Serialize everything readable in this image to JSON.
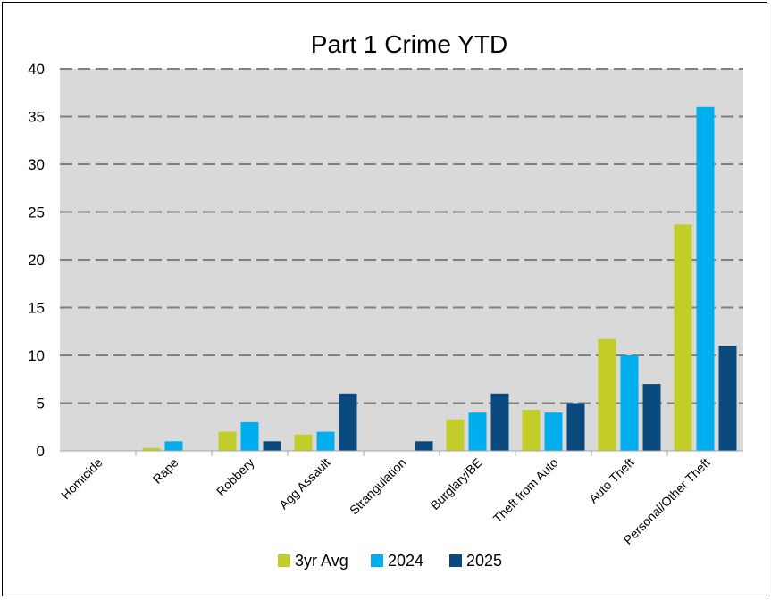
{
  "chart_data": {
    "type": "bar",
    "title": "Part 1 Crime YTD",
    "xlabel": "",
    "ylabel": "",
    "ylim": [
      0,
      40
    ],
    "yticks": [
      0,
      5,
      10,
      15,
      20,
      25,
      30,
      35,
      40
    ],
    "grid": true,
    "legend_position": "bottom",
    "categories": [
      "Homicide",
      "Rape",
      "Robbery",
      "Agg Assault",
      "Strangulation",
      "Burglary/BE",
      "Theft from Auto",
      "Auto Theft",
      "Personal/Other Theft"
    ],
    "series": [
      {
        "name": "3yr Avg",
        "color": "#c3cd2a",
        "values": [
          0,
          0.3,
          2,
          1.7,
          0,
          3.3,
          4.3,
          11.7,
          23.7
        ]
      },
      {
        "name": "2024",
        "color": "#00aeef",
        "values": [
          0,
          1,
          3,
          2,
          0,
          4,
          4,
          10,
          36
        ]
      },
      {
        "name": "2025",
        "color": "#0a4a7f",
        "values": [
          0,
          0,
          1,
          6,
          1,
          6,
          5,
          7,
          11
        ]
      }
    ],
    "plot_background": "#d9d9d9",
    "gridline_color": "#808080"
  }
}
